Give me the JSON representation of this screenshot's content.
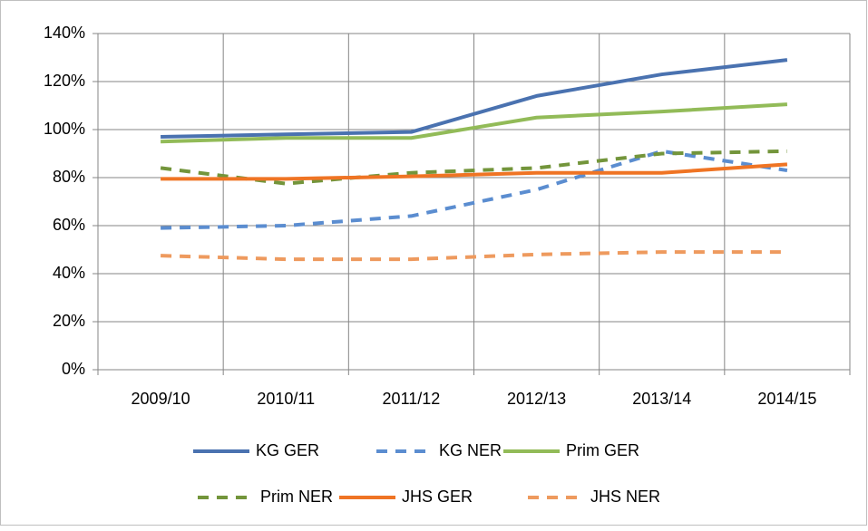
{
  "chart_data": {
    "type": "line",
    "categories": [
      "2009/10",
      "2010/11",
      "2011/12",
      "2012/13",
      "2013/14",
      "2014/15"
    ],
    "ylim": [
      0,
      140
    ],
    "yticks": [
      {
        "value": 0,
        "label": "0%"
      },
      {
        "value": 20,
        "label": "20%"
      },
      {
        "value": 40,
        "label": "40%"
      },
      {
        "value": 60,
        "label": "60%"
      },
      {
        "value": 80,
        "label": "80%"
      },
      {
        "value": 100,
        "label": "100%"
      },
      {
        "value": 120,
        "label": "120%"
      },
      {
        "value": 140,
        "label": "140%"
      }
    ],
    "grid": true,
    "legend": "bottom",
    "series": [
      {
        "name": "KG GER",
        "color": "#4a72b0",
        "dashed": false,
        "values": [
          97,
          98,
          99,
          114,
          123,
          129
        ]
      },
      {
        "name": "KG NER",
        "color": "#5b8dd0",
        "dashed": true,
        "values": [
          59,
          60,
          64,
          75,
          91,
          83
        ]
      },
      {
        "name": "Prim GER",
        "color": "#92bb58",
        "dashed": false,
        "values": [
          95,
          96.5,
          96.5,
          105,
          107.5,
          110.5
        ]
      },
      {
        "name": "Prim NER",
        "color": "#73953b",
        "dashed": true,
        "values": [
          84,
          77.5,
          82,
          84,
          90,
          91
        ]
      },
      {
        "name": "JHS GER",
        "color": "#ef7424",
        "dashed": false,
        "values": [
          79.5,
          79.5,
          80.5,
          82,
          82,
          85.5
        ]
      },
      {
        "name": "JHS NER",
        "color": "#ee9a5e",
        "dashed": true,
        "values": [
          47.5,
          46,
          46,
          48,
          49,
          49
        ]
      }
    ]
  }
}
